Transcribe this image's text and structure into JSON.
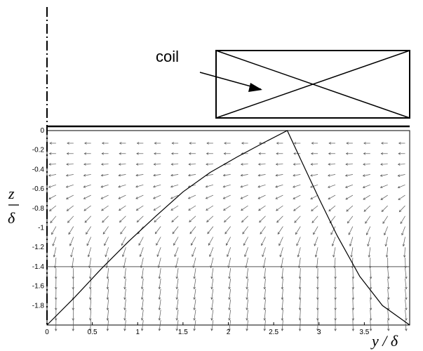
{
  "coil": {
    "label": "coil"
  },
  "chart_data": {
    "type": "quiver",
    "xlabel": "y / δ",
    "ylabel_numerator": "z",
    "ylabel_denominator": "δ",
    "xlim": [
      0,
      4
    ],
    "ylim": [
      -2,
      0
    ],
    "x_ticks": [
      "0",
      "0.5",
      "1",
      "1.5",
      "2",
      "2.5",
      "3",
      "3.5"
    ],
    "x_tick_values": [
      0,
      0.5,
      1,
      1.5,
      2,
      2.5,
      3,
      3.5
    ],
    "y_ticks": [
      "0",
      "-0.2",
      "-0.4",
      "-0.6",
      "-0.8",
      "-1",
      "-1.2",
      "-1.4",
      "-1.6",
      "-1.8"
    ],
    "y_tick_values": [
      0,
      -0.2,
      -0.4,
      -0.6,
      -0.8,
      -1,
      -1.2,
      -1.4,
      -1.6,
      -1.8
    ],
    "horizontal_reference_line": {
      "z": -1.4
    },
    "boundary_curve": [
      {
        "y": 0,
        "z": -2
      },
      {
        "y": 0.3,
        "z": -1.72
      },
      {
        "y": 0.6,
        "z": -1.42
      },
      {
        "y": 0.9,
        "z": -1.14
      },
      {
        "y": 1.2,
        "z": -0.88
      },
      {
        "y": 1.5,
        "z": -0.63
      },
      {
        "y": 1.8,
        "z": -0.43
      },
      {
        "y": 2.1,
        "z": -0.27
      },
      {
        "y": 2.4,
        "z": -0.12
      },
      {
        "y": 2.65,
        "z": 0
      },
      {
        "y": 2.8,
        "z": -0.3
      },
      {
        "y": 3.0,
        "z": -0.7
      },
      {
        "y": 3.2,
        "z": -1.08
      },
      {
        "y": 3.45,
        "z": -1.5
      },
      {
        "y": 3.7,
        "z": -1.8
      },
      {
        "y": 4.0,
        "z": -2
      }
    ],
    "vector_field_note": "Arrows point roughly horizontally toward y=0 near the top (z > -0.5) and downward toward the bottom, larger magnitude near the lower left"
  }
}
